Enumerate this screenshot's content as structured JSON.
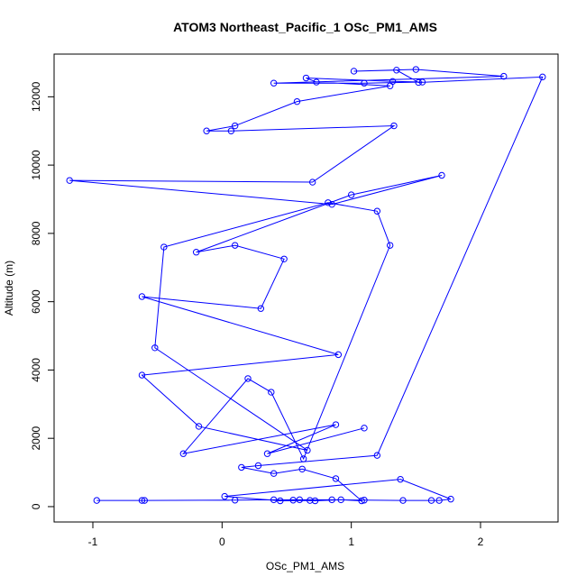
{
  "chart_data": {
    "type": "line",
    "title": "ATOM3 Northeast_Pacific_1 OSc_PM1_AMS",
    "xlabel": "OSc_PM1_AMS",
    "ylabel": "Altitude (m)",
    "xlim": [
      -1.3,
      2.6
    ],
    "ylim": [
      -450,
      13250
    ],
    "xticks": [
      -1,
      0,
      1,
      2
    ],
    "yticks": [
      0,
      2000,
      4000,
      6000,
      8000,
      10000,
      12000
    ],
    "series_color": "#0000ff",
    "marker": "open-circle",
    "grid": false,
    "legend": "none",
    "series": [
      {
        "x": [
          -0.97,
          -0.62,
          -0.6,
          0.1,
          0.4,
          0.6,
          0.85,
          1.1,
          1.4,
          1.62,
          1.68,
          1.77,
          1.38,
          0.02,
          0.45,
          0.68,
          0.55,
          0.72,
          0.92,
          1.08,
          0.88,
          0.62,
          0.4,
          0.15,
          0.28,
          1.2,
          2.48,
          1.52,
          1.35,
          1.02,
          1.5,
          2.18,
          0.4,
          1.1,
          1.55,
          1.32,
          0.65,
          0.73,
          1.3,
          0.58,
          0.1,
          -0.12,
          0.07,
          1.33,
          0.7,
          -1.18,
          0.85,
          1.7,
          1.0,
          -0.2,
          0.1,
          0.48,
          0.3,
          -0.62,
          0.9,
          -0.62,
          -0.18,
          0.66,
          -0.52,
          -0.45,
          0.82,
          1.2,
          1.3,
          0.63,
          0.38,
          0.2,
          -0.3,
          0.88,
          0.35,
          1.1
        ],
        "y": [
          180,
          180,
          180,
          190,
          200,
          200,
          200,
          190,
          180,
          180,
          180,
          220,
          800,
          300,
          170,
          180,
          190,
          170,
          200,
          170,
          820,
          1100,
          970,
          1150,
          1200,
          1500,
          12580,
          12420,
          12780,
          12750,
          12800,
          12600,
          12400,
          12400,
          12430,
          12450,
          12550,
          12430,
          12320,
          11860,
          11150,
          11000,
          11000,
          11150,
          9500,
          9550,
          8850,
          9700,
          9130,
          7450,
          7650,
          7250,
          5800,
          6150,
          4450,
          3850,
          2350,
          1650,
          4650,
          7600,
          8900,
          8650,
          7650,
          1400,
          3350,
          3750,
          1550,
          2400,
          1550,
          2300
        ]
      }
    ]
  }
}
